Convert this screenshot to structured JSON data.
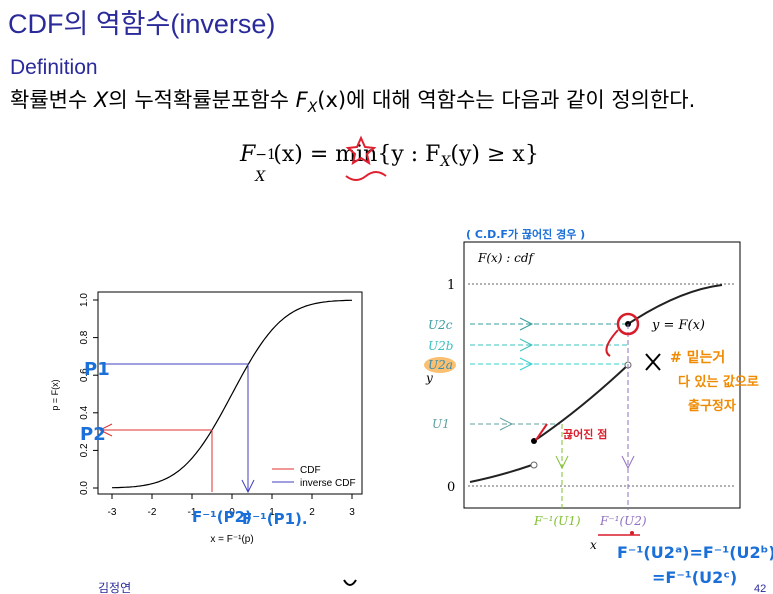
{
  "slide": {
    "title": "CDF의 역함수(inverse)",
    "definition_label": "Definition",
    "definition_text_1": "확률변수 ",
    "definition_var": "X",
    "definition_text_2": "의 누적확률분포함수 ",
    "definition_F": "F",
    "definition_sub": "X",
    "definition_arg": "(x)",
    "definition_text_3": "에 대해 역함수는 다음과 같이 정의한다.",
    "formula": {
      "lhs_F": "F",
      "lhs_sub": "X",
      "lhs_sup": "−1",
      "lhs_arg": "(x) = ",
      "min": "min",
      "set": "{y : F",
      "set_sub": "X",
      "set_tail": "(y) ≥ x}"
    },
    "footer_page": "42",
    "footer_author": "김정연"
  },
  "left_plot": {
    "ylabel": "p = F(x)",
    "xlabel": "x = F⁻¹(p)",
    "xticks": [
      "-3",
      "-2",
      "-1",
      "0",
      "1",
      "2",
      "3"
    ],
    "yticks": [
      "0.0",
      "0.2",
      "0.4",
      "0.6",
      "0.8",
      "1.0"
    ],
    "legend": [
      "CDF",
      "inverse CDF"
    ],
    "colors": {
      "cdf": "#e03030",
      "inverse": "#4040c0"
    }
  },
  "right_plot": {
    "box_label": "F(x) : cdf",
    "curve_label": "y = F(x)",
    "y_labels": [
      "1",
      "U2c",
      "U2b",
      "U2a",
      "U1",
      "0"
    ],
    "x_labels": [
      "F⁻¹(U1)",
      "F⁻¹(U2)"
    ],
    "y_axis": "y",
    "x_axis": "x"
  },
  "annotations": {
    "p1": "P1",
    "p2": "P2",
    "fp2": "F⁻¹(P2)",
    "fp1": "F⁻¹(P1).",
    "top_note": "( C.D.F가 끊어진 경우 )",
    "side_note_1": "# 밑는거",
    "side_note_2": "다 있는 값으로",
    "side_note_3": "출구정자",
    "red_note": "끊어진 점",
    "bottom_eq_1": "F⁻¹(U2ᵃ)=F⁻¹(U2ᵇ)",
    "bottom_eq_2": "=F⁻¹(U2ᶜ)"
  }
}
